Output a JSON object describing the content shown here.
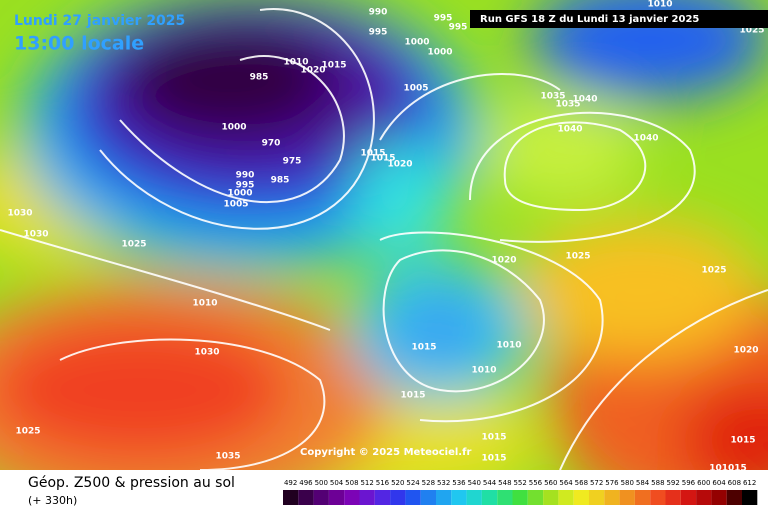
{
  "header": {
    "date": "Lundi 27 janvier 2025",
    "time": "13:00 locale",
    "run": "Run GFS 18 Z du Lundi 13 janvier 2025"
  },
  "copyright": "Copyright © 2025 Meteociel.fr",
  "footer": {
    "title": "Géop. Z500 & pression au sol",
    "lead": "(+ 330h)"
  },
  "legend": {
    "ticks": [
      492,
      496,
      500,
      504,
      508,
      512,
      516,
      520,
      524,
      528,
      532,
      536,
      540,
      544,
      548,
      552,
      556,
      560,
      564,
      568,
      572,
      576,
      580,
      584,
      588,
      592,
      596,
      600,
      604,
      608,
      612
    ]
  },
  "isobar_labels": [
    "990",
    "995",
    "995",
    "995",
    "1000",
    "1000",
    "1010",
    "1020",
    "1015",
    "985",
    "1005",
    "1000",
    "970",
    "975",
    "990",
    "995",
    "985",
    "1000",
    "1005",
    "1015",
    "1015",
    "1020",
    "1030",
    "1030",
    "1025",
    "1010",
    "1030",
    "1025",
    "1035",
    "1035",
    "1035",
    "1040",
    "1040",
    "1040",
    "1010",
    "1025",
    "1020",
    "1025",
    "1025",
    "1015",
    "1010",
    "1010",
    "1015",
    "1020",
    "1015",
    "1015",
    "1015",
    "101015"
  ]
}
